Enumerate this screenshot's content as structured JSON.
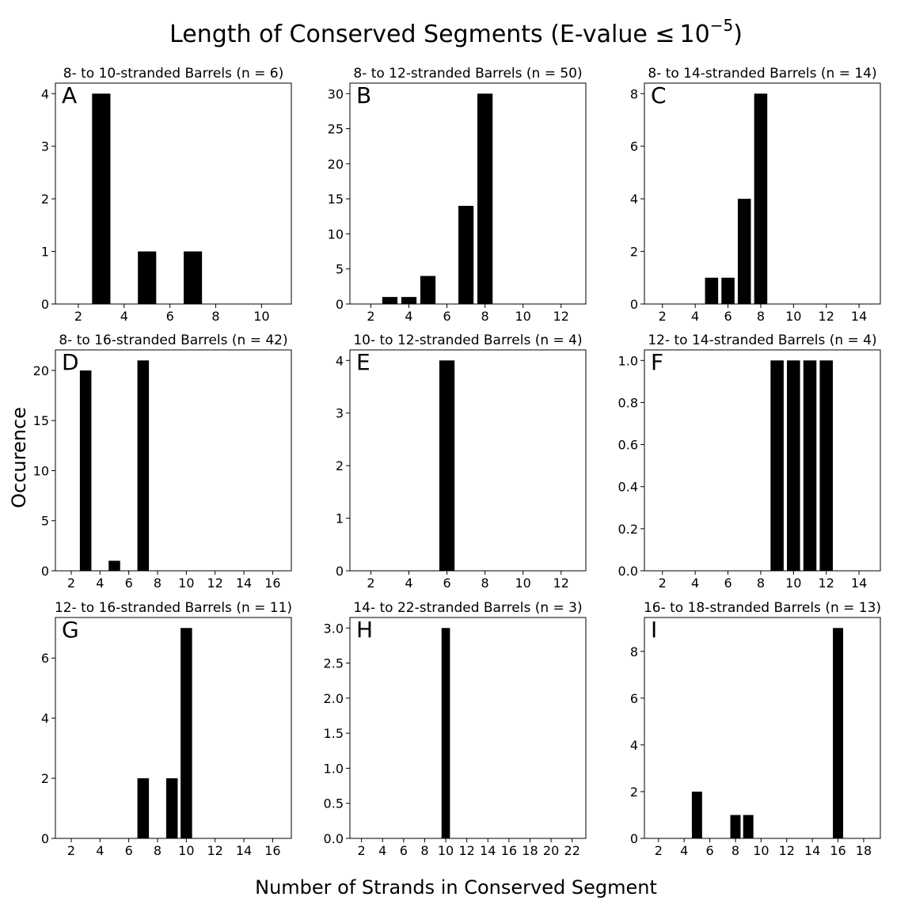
{
  "figure": {
    "title_main": "Length of Conserved Segments (E-value ",
    "title_leq": "≤",
    "title_base": "10",
    "title_exp": "−5",
    "title_close": ")",
    "xlabel": "Number of Strands in Conserved Segment",
    "ylabel": "Occurence"
  },
  "chart_data": [
    {
      "type": "bar",
      "letter": "A",
      "title": "8- to 10-stranded Barrels (n = 6)",
      "xlim": [
        1,
        11.3
      ],
      "ylim": [
        0,
        4.2
      ],
      "xticks": [
        2,
        4,
        6,
        8,
        10
      ],
      "yticks": [
        0,
        1,
        2,
        3,
        4
      ],
      "x": [
        3,
        5,
        7
      ],
      "values": [
        4,
        1,
        1
      ]
    },
    {
      "type": "bar",
      "letter": "B",
      "title": "8- to 12-stranded Barrels (n = 50)",
      "xlim": [
        0.9,
        13.3
      ],
      "ylim": [
        0,
        31.5
      ],
      "xticks": [
        2,
        4,
        6,
        8,
        10,
        12
      ],
      "yticks": [
        0,
        5,
        10,
        15,
        20,
        25,
        30
      ],
      "x": [
        3,
        4,
        5,
        7,
        8
      ],
      "values": [
        1,
        1,
        4,
        14,
        30
      ]
    },
    {
      "type": "bar",
      "letter": "C",
      "title": "8- to 14-stranded Barrels (n = 14)",
      "xlim": [
        0.9,
        15.3
      ],
      "ylim": [
        0,
        8.4
      ],
      "xticks": [
        2,
        4,
        6,
        8,
        10,
        12,
        14
      ],
      "yticks": [
        0,
        2,
        4,
        6,
        8
      ],
      "x": [
        5,
        6,
        7,
        8
      ],
      "values": [
        1,
        1,
        4,
        8
      ]
    },
    {
      "type": "bar",
      "letter": "D",
      "title": "8- to 16-stranded Barrels (n = 42)",
      "xlim": [
        0.9,
        17.3
      ],
      "ylim": [
        0,
        22.05
      ],
      "xticks": [
        2,
        4,
        6,
        8,
        10,
        12,
        14,
        16
      ],
      "yticks": [
        0,
        5,
        10,
        15,
        20
      ],
      "x": [
        3,
        5,
        7
      ],
      "values": [
        20,
        1,
        21
      ]
    },
    {
      "type": "bar",
      "letter": "E",
      "title": "10- to 12-stranded Barrels (n = 4)",
      "xlim": [
        0.9,
        13.3
      ],
      "ylim": [
        0,
        4.2
      ],
      "xticks": [
        2,
        4,
        6,
        8,
        10,
        12
      ],
      "yticks": [
        0,
        1,
        2,
        3,
        4
      ],
      "x": [
        6
      ],
      "values": [
        4
      ]
    },
    {
      "type": "bar",
      "letter": "F",
      "title": "12- to 14-stranded Barrels (n = 4)",
      "xlim": [
        0.9,
        15.3
      ],
      "ylim": [
        0,
        1.05
      ],
      "xticks": [
        2,
        4,
        6,
        8,
        10,
        12,
        14
      ],
      "yticks": [
        0.0,
        0.2,
        0.4,
        0.6,
        0.8,
        1.0
      ],
      "ydecimals": 1,
      "x": [
        9,
        10,
        11,
        12
      ],
      "values": [
        1,
        1,
        1,
        1
      ]
    },
    {
      "type": "bar",
      "letter": "G",
      "title": "12- to 16-stranded Barrels (n = 11)",
      "xlim": [
        0.9,
        17.3
      ],
      "ylim": [
        0,
        7.35
      ],
      "xticks": [
        2,
        4,
        6,
        8,
        10,
        12,
        14,
        16
      ],
      "yticks": [
        0,
        2,
        4,
        6
      ],
      "x": [
        7,
        9,
        10
      ],
      "values": [
        2,
        2,
        7
      ]
    },
    {
      "type": "bar",
      "letter": "H",
      "title": "14- to 22-stranded Barrels (n = 3)",
      "xlim": [
        0.9,
        23.3
      ],
      "ylim": [
        0,
        3.15
      ],
      "xticks": [
        2,
        4,
        6,
        8,
        10,
        12,
        14,
        16,
        18,
        20,
        22
      ],
      "yticks": [
        0.0,
        0.5,
        1.0,
        1.5,
        2.0,
        2.5,
        3.0
      ],
      "ydecimals": 1,
      "x": [
        10
      ],
      "values": [
        3
      ]
    },
    {
      "type": "bar",
      "letter": "I",
      "title": "16- to 18-stranded Barrels (n = 13)",
      "xlim": [
        0.9,
        19.3
      ],
      "ylim": [
        0,
        9.45
      ],
      "xticks": [
        2,
        4,
        6,
        8,
        10,
        12,
        14,
        16,
        18
      ],
      "yticks": [
        0,
        2,
        4,
        6,
        8
      ],
      "x": [
        5,
        8,
        9,
        16
      ],
      "values": [
        2,
        1,
        1,
        9
      ]
    }
  ]
}
